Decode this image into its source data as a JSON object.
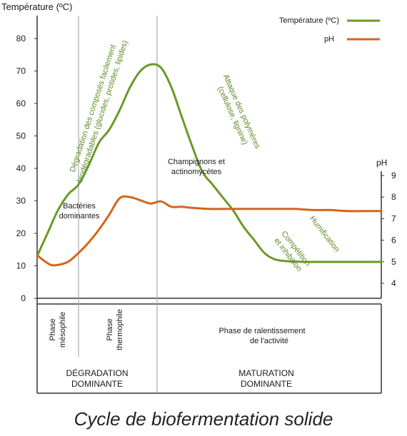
{
  "chart_data": {
    "type": "line",
    "title": "",
    "ylabel": "Température (ºC)",
    "y2label": "pH",
    "ylim": [
      0,
      90
    ],
    "y2lim": [
      3,
      10
    ],
    "y_ticks": [
      "0",
      "10",
      "20",
      "30",
      "40",
      "50",
      "60",
      "70",
      "80"
    ],
    "y2_ticks": [
      "4",
      "5",
      "6",
      "7",
      "8",
      "9"
    ],
    "grid": false,
    "legend_position": "top-right",
    "x_range": [
      0,
      100
    ],
    "series": [
      {
        "name": "Température (ºC)",
        "color": "#6a9a2a",
        "axis": "left",
        "x": [
          0,
          3,
          6,
          9,
          12,
          15,
          18,
          21,
          24,
          27,
          30,
          33,
          36,
          39,
          42,
          45,
          48,
          51,
          54,
          57,
          60,
          63,
          66,
          69,
          72,
          75,
          78,
          81,
          84,
          87,
          90,
          93,
          96,
          100
        ],
        "values": [
          13,
          20,
          27,
          32,
          35,
          41,
          48,
          52,
          58,
          65,
          70,
          72,
          71,
          65,
          56,
          47,
          39,
          35,
          31,
          27,
          22,
          18,
          14,
          12,
          11.5,
          11.3,
          11.2,
          11.2,
          11.2,
          11.2,
          11.2,
          11.2,
          11.2,
          11.2
        ]
      },
      {
        "name": "pH",
        "color": "#d4651c",
        "axis": "right",
        "x": [
          0,
          2,
          4,
          6,
          9,
          12,
          15,
          18,
          21,
          24,
          27,
          30,
          33,
          36,
          39,
          42,
          45,
          50,
          55,
          60,
          65,
          70,
          75,
          80,
          85,
          90,
          95,
          100
        ],
        "values": [
          5.3,
          5.05,
          4.85,
          4.85,
          5.0,
          5.4,
          5.9,
          6.5,
          7.2,
          7.95,
          8.0,
          7.85,
          7.7,
          7.8,
          7.55,
          7.55,
          7.5,
          7.45,
          7.45,
          7.45,
          7.45,
          7.45,
          7.45,
          7.4,
          7.4,
          7.35,
          7.35,
          7.35
        ]
      }
    ],
    "annotations": [
      "Dégradation des composés facilement biodégradables (glucides, protides, lipides)",
      "Bactéries dominantes",
      "Champignons et actinomycètes",
      "Attaque des polymères (cellulose, lignine)",
      "Humification",
      "Compétition et inhibition"
    ],
    "phases": [
      "Phase mésophile",
      "Phase thermophile",
      "Phase de ralentissement de l'activité"
    ],
    "stages": [
      "DÉGRADATION DOMINANTE",
      "MATURATION DOMINANTE"
    ]
  },
  "labels": {
    "y_axis_title": "Température (ºC)",
    "y2_axis_title": "pH",
    "legend_temp": "Température (ºC)",
    "legend_ph": "pH",
    "annot_degradation_1": "Dégradation des composés facilement",
    "annot_degradation_2": "biodégradables (glucides, protides, lipides)",
    "annot_bacteries_1": "Bactéries",
    "annot_bacteries_2": "dominantes",
    "annot_champignons_1": "Champignons et",
    "annot_champignons_2": "actinomycètes",
    "annot_polymeres_1": "Attaque des polymères",
    "annot_polymeres_2": "(cellulose, lignine)",
    "annot_humification": "Humification",
    "annot_competition_1": "Compétition",
    "annot_competition_2": "et inhibition",
    "phase_meso_1": "Phase",
    "phase_meso_2": "mésophile",
    "phase_thermo_1": "Phase",
    "phase_thermo_2": "thermophile",
    "phase_ralent_1": "Phase de ralentissement",
    "phase_ralent_2": "de l'activité",
    "stage_degradation_1": "DÉGRADATION",
    "stage_degradation_2": "DOMINANTE",
    "stage_maturation_1": "MATURATION",
    "stage_maturation_2": "DOMINANTE",
    "caption": "Cycle de biofermentation solide"
  }
}
